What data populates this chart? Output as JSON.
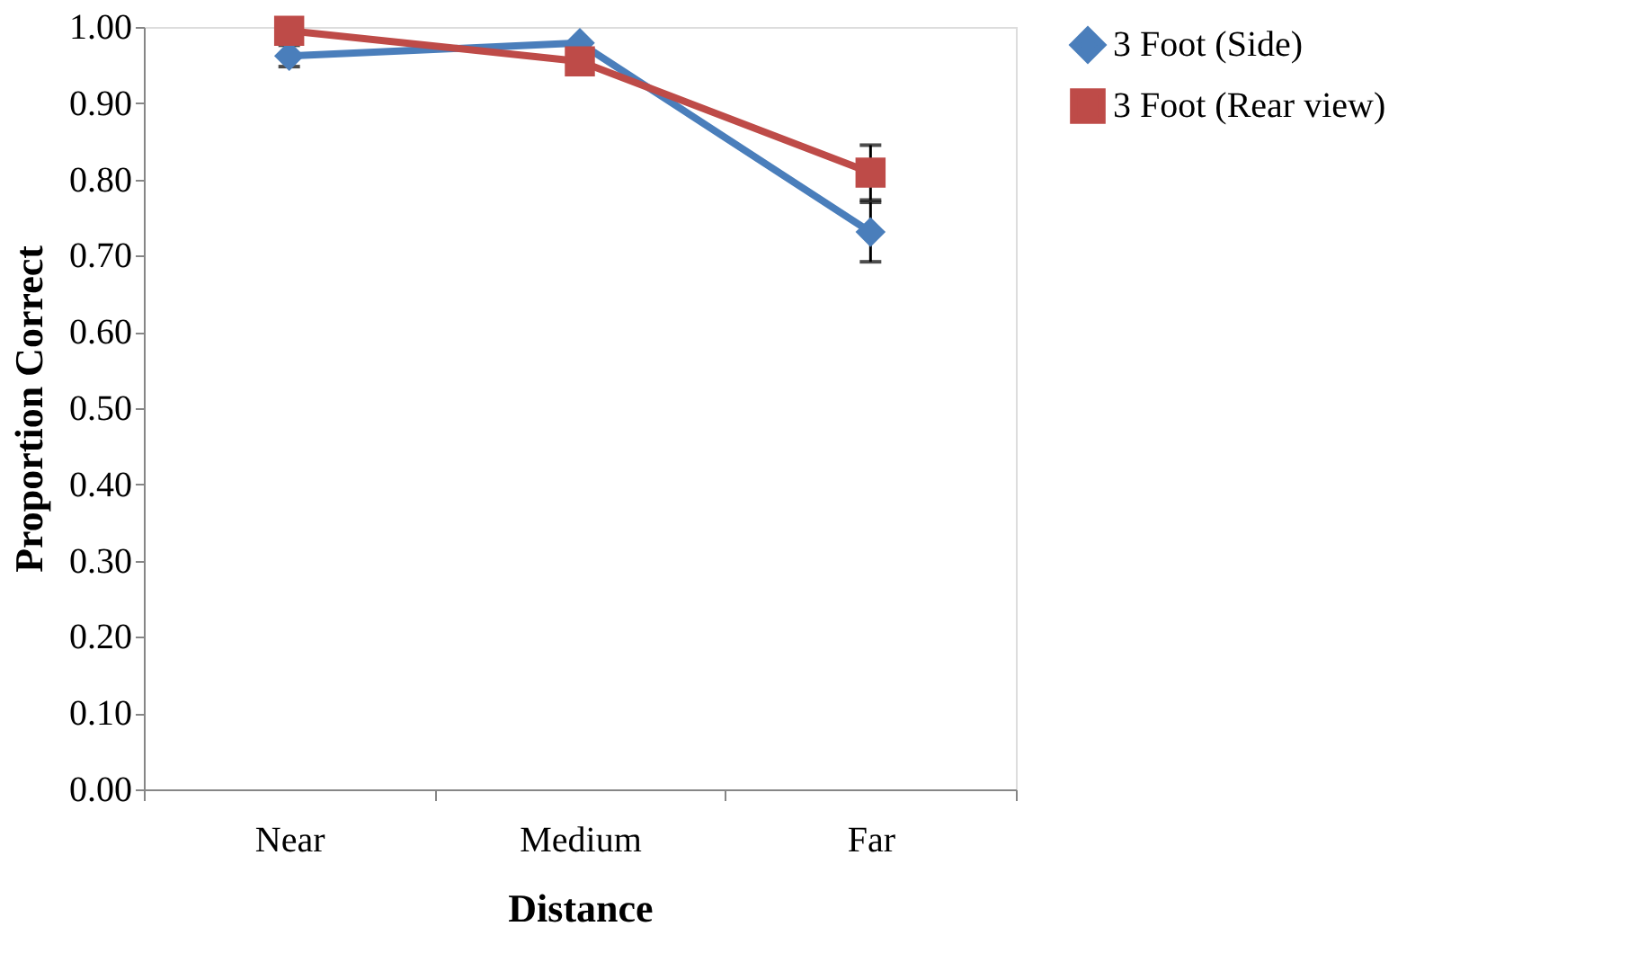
{
  "chart_data": {
    "type": "line",
    "xlabel": "Distance",
    "ylabel": "Proportion Correct",
    "categories": [
      "Near",
      "Medium",
      "Far"
    ],
    "series": [
      {
        "name": "3 Foot (Side)",
        "color": "#4a7ebb",
        "marker": "diamond",
        "values": [
          0.962,
          0.979,
          0.731
        ],
        "errors": [
          0.014,
          null,
          0.039
        ]
      },
      {
        "name": "3 Foot (Rear view)",
        "color": "#be4b48",
        "marker": "square",
        "values": [
          0.995,
          0.955,
          0.809
        ],
        "errors": [
          null,
          null,
          0.036
        ]
      }
    ],
    "ylim": [
      0,
      1
    ],
    "yticks": [
      {
        "value": 0,
        "label": "0.00"
      },
      {
        "value": 0.1,
        "label": "0.10"
      },
      {
        "value": 0.2,
        "label": "0.20"
      },
      {
        "value": 0.3,
        "label": "0.30"
      },
      {
        "value": 0.4,
        "label": "0.40"
      },
      {
        "value": 0.5,
        "label": "0.50"
      },
      {
        "value": 0.6,
        "label": "0.60"
      },
      {
        "value": 0.7,
        "label": "0.70"
      },
      {
        "value": 0.8,
        "label": "0.80"
      },
      {
        "value": 0.9,
        "label": "0.90"
      },
      {
        "value": 1,
        "label": "1.00"
      }
    ],
    "grid": false,
    "legend": "right",
    "line_style": "solid"
  }
}
